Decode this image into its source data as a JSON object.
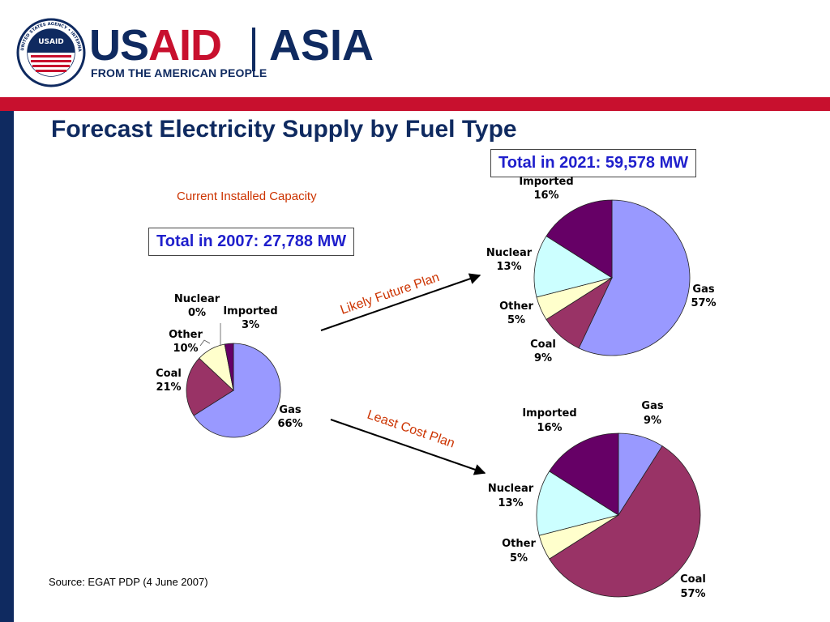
{
  "header": {
    "logo_us": "US",
    "logo_aid": "AID",
    "logo_region": "ASIA",
    "tagline": "FROM THE AMERICAN PEOPLE",
    "seal_text": "UNITED STATES AGENCY • INTERNATIONAL DEVELOPMENT",
    "seal_center": "USAID"
  },
  "title": "Forecast Electricity Supply by Fuel Type",
  "current_label": "Current Installed Capacity",
  "total_2007": "Total in 2007: 27,788 MW",
  "total_2021": "Total in 2021: 59,578 MW",
  "arrows": {
    "likely": "Likely Future Plan",
    "least": "Least Cost Plan"
  },
  "source": "Source: EGAT PDP (4 June 2007)",
  "colors": {
    "brand_navy": "#0f2a60",
    "brand_red": "#c8102e",
    "gas": "#9999ff",
    "coal": "#993366",
    "other": "#ffffcc",
    "nuclear": "#ccffff",
    "imported": "#660066",
    "annotation": "#cc3300"
  },
  "chart_data": [
    {
      "type": "pie",
      "title": "Total in 2007: 27,788 MW",
      "slices": [
        {
          "label": "Gas",
          "value": 66,
          "pct": "66%",
          "color": "#9999ff"
        },
        {
          "label": "Coal",
          "value": 21,
          "pct": "21%",
          "color": "#993366"
        },
        {
          "label": "Other",
          "value": 10,
          "pct": "10%",
          "color": "#ffffcc"
        },
        {
          "label": "Nuclear",
          "value": 0,
          "pct": "0%",
          "color": "#ccffff"
        },
        {
          "label": "Imported",
          "value": 3,
          "pct": "3%",
          "color": "#660066"
        }
      ]
    },
    {
      "type": "pie",
      "title": "Likely Future Plan",
      "slices": [
        {
          "label": "Gas",
          "value": 57,
          "pct": "57%",
          "color": "#9999ff"
        },
        {
          "label": "Coal",
          "value": 9,
          "pct": "9%",
          "color": "#993366"
        },
        {
          "label": "Other",
          "value": 5,
          "pct": "5%",
          "color": "#ffffcc"
        },
        {
          "label": "Nuclear",
          "value": 13,
          "pct": "13%",
          "color": "#ccffff"
        },
        {
          "label": "Imported",
          "value": 16,
          "pct": "16%",
          "color": "#660066"
        }
      ]
    },
    {
      "type": "pie",
      "title": "Least Cost Plan",
      "slices": [
        {
          "label": "Gas",
          "value": 9,
          "pct": "9%",
          "color": "#9999ff"
        },
        {
          "label": "Coal",
          "value": 57,
          "pct": "57%",
          "color": "#993366"
        },
        {
          "label": "Other",
          "value": 5,
          "pct": "5%",
          "color": "#ffffcc"
        },
        {
          "label": "Nuclear",
          "value": 13,
          "pct": "13%",
          "color": "#ccffff"
        },
        {
          "label": "Imported",
          "value": 16,
          "pct": "16%",
          "color": "#660066"
        }
      ]
    }
  ]
}
